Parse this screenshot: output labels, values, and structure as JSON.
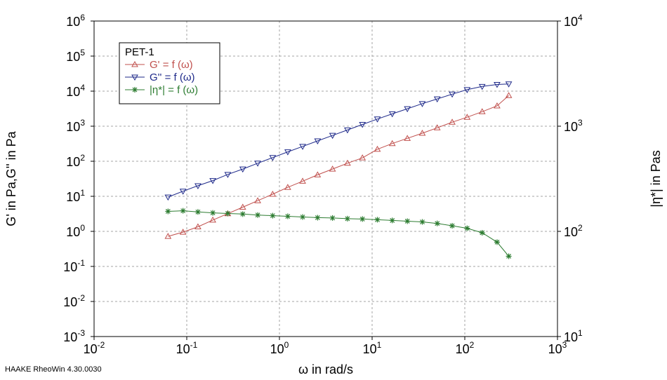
{
  "chart_data": {
    "type": "line",
    "title": "",
    "xlabel": "ω in rad/s",
    "ylabel": "G' in Pa,G'' in Pa",
    "y2label": "|η*| in Pas",
    "xscale": "log",
    "yscale": "log",
    "y2scale": "log",
    "xlim": [
      0.01,
      1000
    ],
    "ylim": [
      0.001,
      1000000
    ],
    "y2lim": [
      10,
      10000
    ],
    "x_ticks": [
      {
        "base": "10",
        "exp": "-2"
      },
      {
        "base": "10",
        "exp": "-1"
      },
      {
        "base": "10",
        "exp": "0"
      },
      {
        "base": "10",
        "exp": "1"
      },
      {
        "base": "10",
        "exp": "2"
      },
      {
        "base": "10",
        "exp": "3"
      }
    ],
    "y_ticks": [
      {
        "base": "10",
        "exp": "-3"
      },
      {
        "base": "10",
        "exp": "-2"
      },
      {
        "base": "10",
        "exp": "-1"
      },
      {
        "base": "10",
        "exp": "0"
      },
      {
        "base": "10",
        "exp": "1"
      },
      {
        "base": "10",
        "exp": "2"
      },
      {
        "base": "10",
        "exp": "3"
      },
      {
        "base": "10",
        "exp": "4"
      },
      {
        "base": "10",
        "exp": "5"
      },
      {
        "base": "10",
        "exp": "6"
      }
    ],
    "y2_ticks": [
      {
        "base": "10",
        "exp": "1"
      },
      {
        "base": "10",
        "exp": "2"
      },
      {
        "base": "10",
        "exp": "3"
      },
      {
        "base": "10",
        "exp": "4"
      }
    ],
    "grid": true,
    "legend_position": "top-left",
    "legend_title": "PET-1",
    "x": [
      0.0628,
      0.0911,
      0.132,
      0.191,
      0.277,
      0.402,
      0.583,
      0.845,
      1.23,
      1.78,
      2.58,
      3.74,
      5.42,
      7.86,
      11.4,
      16.5,
      24.0,
      34.8,
      50.4,
      73.1,
      106,
      154,
      223,
      298
    ],
    "series": [
      {
        "name": "G' = f (ω)",
        "axis": "left",
        "marker": "triangle-up",
        "color": "#c0504d",
        "values": [
          0.72,
          0.95,
          1.35,
          2.1,
          3.2,
          4.9,
          7.5,
          11.5,
          18,
          27,
          41,
          60,
          88,
          125,
          220,
          320,
          450,
          630,
          900,
          1300,
          1800,
          2600,
          3800,
          7500
        ]
      },
      {
        "name": "G'' = f (ω)",
        "axis": "left",
        "marker": "triangle-down",
        "color": "#1f2a8a",
        "values": [
          9.5,
          14,
          20,
          28,
          42,
          60,
          88,
          127,
          185,
          265,
          380,
          545,
          780,
          1120,
          1600,
          2250,
          3150,
          4400,
          6000,
          8200,
          11000,
          13600,
          15500,
          16000
        ]
      },
      {
        "name": "|η*| = f (ω)",
        "axis": "right",
        "marker": "asterisk",
        "color": "#2e7d32",
        "values": [
          155,
          157,
          153,
          150,
          148,
          146,
          143,
          141,
          139,
          137,
          135,
          134,
          132,
          131,
          129,
          127,
          125,
          123,
          119,
          113,
          107,
          97,
          79,
          58
        ]
      }
    ]
  },
  "footer": "HAAKE RheoWin 4.30.0030"
}
